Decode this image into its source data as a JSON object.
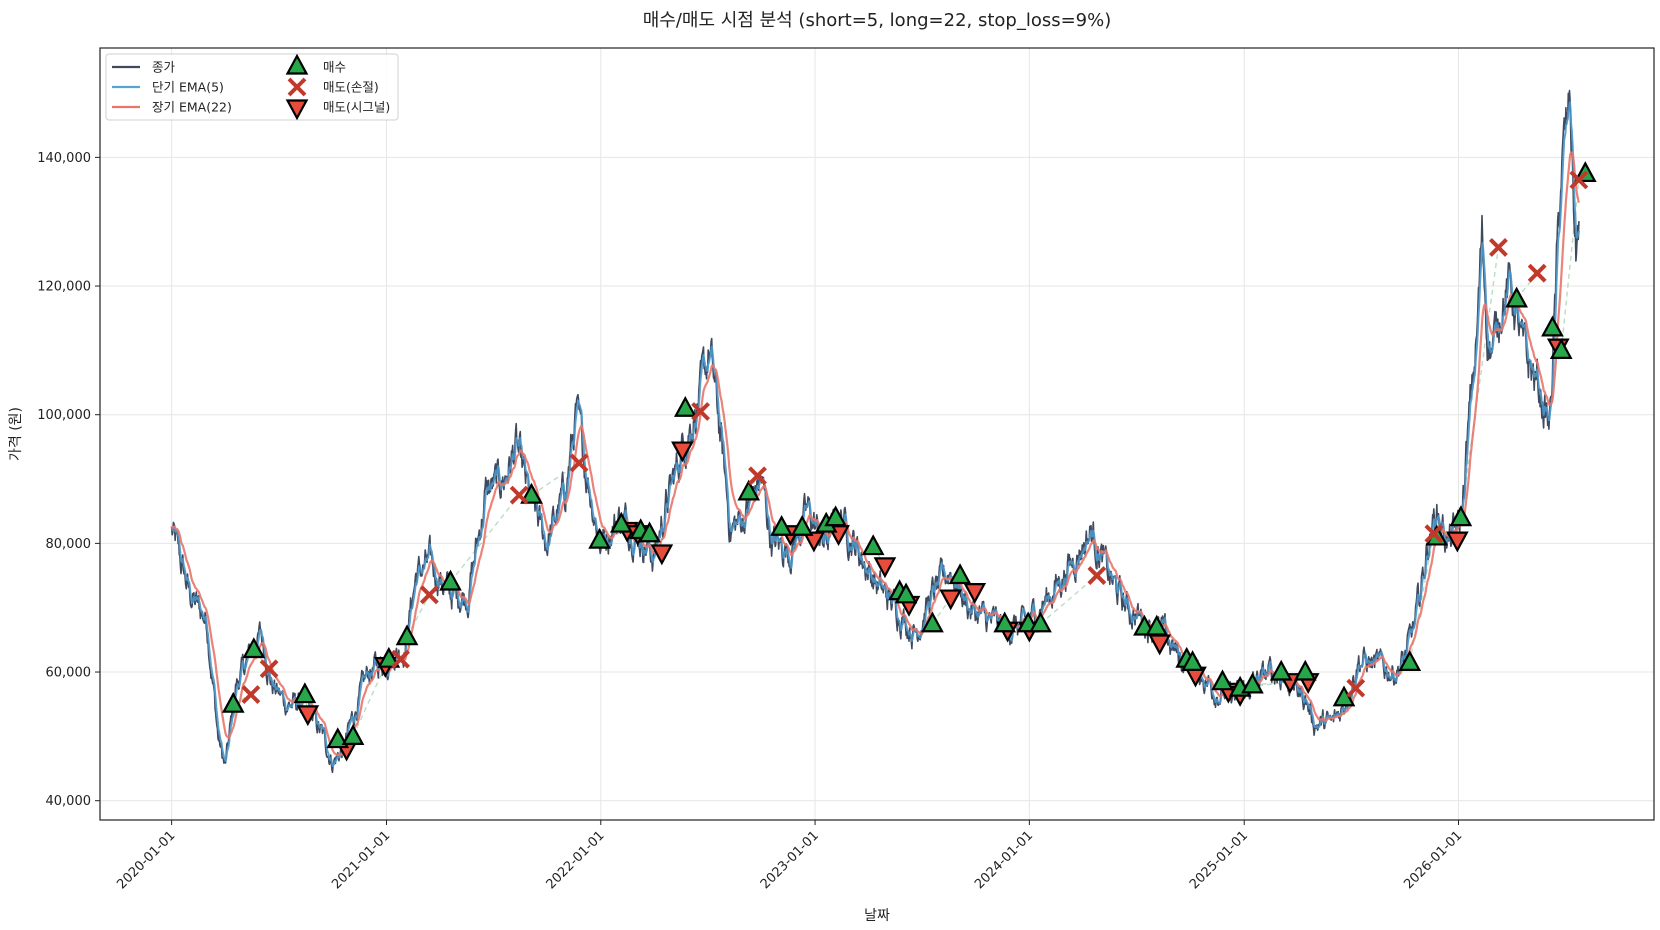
{
  "chart_data": {
    "type": "line",
    "title": "매수/매도 시점 분석 (short=5, long=22, stop_loss=9%)",
    "xlabel": "날짜",
    "ylabel": "가격 (원)",
    "xlim": [
      "2019-09-01",
      "2026-11-30"
    ],
    "ylim": [
      37000,
      157000
    ],
    "grid": true,
    "legend_position": "upper-left",
    "x_ticks": [
      "2020-01-01",
      "2021-01-01",
      "2022-01-01",
      "2023-01-01",
      "2024-01-01",
      "2025-01-01",
      "2026-01-01"
    ],
    "y_ticks": [
      40000,
      60000,
      80000,
      100000,
      120000,
      140000
    ],
    "y_tick_labels": [
      "40,000",
      "60,000",
      "80,000",
      "100,000",
      "120,000",
      "140,000"
    ],
    "price_anchors": [
      [
        "2020-01-01",
        82000
      ],
      [
        "2020-02-01",
        72000
      ],
      [
        "2020-03-01",
        68000
      ],
      [
        "2020-03-20",
        50000
      ],
      [
        "2020-04-01",
        45000
      ],
      [
        "2020-04-20",
        58000
      ],
      [
        "2020-05-10",
        62000
      ],
      [
        "2020-06-01",
        66000
      ],
      [
        "2020-06-20",
        58000
      ],
      [
        "2020-07-15",
        55000
      ],
      [
        "2020-08-15",
        55000
      ],
      [
        "2020-09-15",
        50000
      ],
      [
        "2020-10-01",
        46000
      ],
      [
        "2020-10-20",
        48000
      ],
      [
        "2020-11-01",
        52000
      ],
      [
        "2020-12-01",
        60000
      ],
      [
        "2021-01-01",
        62000
      ],
      [
        "2021-02-01",
        64000
      ],
      [
        "2021-02-20",
        75000
      ],
      [
        "2021-03-15",
        77000
      ],
      [
        "2021-04-20",
        72000
      ],
      [
        "2021-05-20",
        72000
      ],
      [
        "2021-06-20",
        88000
      ],
      [
        "2021-07-20",
        90000
      ],
      [
        "2021-08-10",
        95000
      ],
      [
        "2021-09-01",
        87000
      ],
      [
        "2021-10-01",
        80000
      ],
      [
        "2021-11-01",
        88000
      ],
      [
        "2021-11-20",
        100000
      ],
      [
        "2021-12-10",
        90000
      ],
      [
        "2022-01-01",
        80000
      ],
      [
        "2022-02-01",
        84000
      ],
      [
        "2022-03-01",
        82000
      ],
      [
        "2022-04-01",
        78000
      ],
      [
        "2022-04-20",
        85000
      ],
      [
        "2022-05-20",
        95000
      ],
      [
        "2022-06-20",
        103000
      ],
      [
        "2022-07-05",
        110000
      ],
      [
        "2022-07-20",
        100000
      ],
      [
        "2022-08-10",
        82000
      ],
      [
        "2022-09-01",
        84000
      ],
      [
        "2022-10-01",
        90000
      ],
      [
        "2022-10-20",
        80000
      ],
      [
        "2022-11-20",
        79000
      ],
      [
        "2022-12-20",
        85000
      ],
      [
        "2023-01-15",
        80000
      ],
      [
        "2023-02-15",
        84000
      ],
      [
        "2023-03-20",
        78000
      ],
      [
        "2023-04-20",
        73000
      ],
      [
        "2023-05-20",
        70000
      ],
      [
        "2023-06-20",
        66000
      ],
      [
        "2023-07-20",
        72000
      ],
      [
        "2023-08-20",
        76000
      ],
      [
        "2023-09-20",
        70000
      ],
      [
        "2023-10-20",
        68000
      ],
      [
        "2023-11-20",
        67000
      ],
      [
        "2023-12-20",
        67000
      ],
      [
        "2024-01-20",
        70000
      ],
      [
        "2024-02-20",
        74000
      ],
      [
        "2024-03-20",
        78000
      ],
      [
        "2024-04-15",
        82000
      ],
      [
        "2024-05-15",
        75000
      ],
      [
        "2024-06-15",
        70000
      ],
      [
        "2024-07-15",
        68000
      ],
      [
        "2024-08-15",
        66000
      ],
      [
        "2024-09-15",
        62000
      ],
      [
        "2024-10-15",
        60000
      ],
      [
        "2024-11-15",
        57000
      ],
      [
        "2024-12-15",
        56000
      ],
      [
        "2025-01-15",
        58000
      ],
      [
        "2025-02-15",
        60000
      ],
      [
        "2025-03-15",
        59000
      ],
      [
        "2025-04-15",
        56000
      ],
      [
        "2025-05-01",
        52000
      ],
      [
        "2025-06-01",
        52000
      ],
      [
        "2025-06-20",
        55000
      ],
      [
        "2025-07-15",
        62000
      ],
      [
        "2025-08-15",
        61000
      ],
      [
        "2025-09-15",
        60000
      ],
      [
        "2025-10-01",
        62000
      ],
      [
        "2025-10-20",
        68000
      ],
      [
        "2025-11-10",
        80000
      ],
      [
        "2025-11-25",
        85000
      ],
      [
        "2025-12-15",
        80000
      ],
      [
        "2026-01-05",
        83000
      ],
      [
        "2026-01-20",
        100000
      ],
      [
        "2026-02-01",
        112000
      ],
      [
        "2026-02-10",
        128000
      ],
      [
        "2026-02-20",
        112000
      ],
      [
        "2026-03-01",
        110000
      ],
      [
        "2026-03-15",
        118000
      ],
      [
        "2026-04-01",
        120000
      ],
      [
        "2026-04-20",
        110000
      ],
      [
        "2026-05-15",
        105000
      ],
      [
        "2026-06-05",
        98000
      ],
      [
        "2026-06-25",
        138000
      ],
      [
        "2026-07-10",
        148000
      ],
      [
        "2026-07-20",
        125000
      ],
      [
        "2026-07-25",
        130000
      ]
    ],
    "price_noise": 3500,
    "trades": {
      "buy": [
        [
          "2020-04-15",
          55000
        ],
        [
          "2020-05-20",
          63500
        ],
        [
          "2020-08-15",
          56500
        ],
        [
          "2020-10-10",
          49500
        ],
        [
          "2020-11-05",
          50000
        ],
        [
          "2021-01-05",
          62000
        ],
        [
          "2021-02-05",
          65500
        ],
        [
          "2021-04-20",
          74000
        ],
        [
          "2021-09-05",
          87500
        ],
        [
          "2021-12-30",
          80500
        ],
        [
          "2022-02-05",
          83000
        ],
        [
          "2022-03-10",
          82000
        ],
        [
          "2022-03-25",
          81500
        ],
        [
          "2022-05-25",
          101000
        ],
        [
          "2022-09-10",
          88000
        ],
        [
          "2022-11-05",
          82500
        ],
        [
          "2022-12-10",
          82500
        ],
        [
          "2023-01-20",
          83000
        ],
        [
          "2023-02-05",
          84000
        ],
        [
          "2023-04-10",
          79500
        ],
        [
          "2023-05-25",
          72500
        ],
        [
          "2023-06-05",
          72000
        ],
        [
          "2023-07-20",
          67500
        ],
        [
          "2023-09-05",
          75000
        ],
        [
          "2023-11-20",
          67500
        ],
        [
          "2023-12-30",
          67500
        ],
        [
          "2024-01-20",
          67500
        ],
        [
          "2024-07-15",
          67000
        ],
        [
          "2024-08-05",
          67000
        ],
        [
          "2024-09-25",
          62000
        ],
        [
          "2024-10-05",
          61500
        ],
        [
          "2024-11-25",
          58500
        ],
        [
          "2024-12-25",
          57500
        ],
        [
          "2025-01-15",
          58000
        ],
        [
          "2025-03-05",
          60000
        ],
        [
          "2025-04-15",
          60000
        ],
        [
          "2025-06-20",
          56000
        ],
        [
          "2025-10-10",
          61500
        ],
        [
          "2025-11-25",
          81000
        ],
        [
          "2026-01-05",
          84000
        ],
        [
          "2026-04-10",
          118000
        ],
        [
          "2026-06-10",
          113500
        ],
        [
          "2026-06-25",
          110000
        ],
        [
          "2026-08-05",
          137500
        ]
      ],
      "stop_loss": [
        [
          "2020-05-15",
          56500
        ],
        [
          "2020-06-15",
          60500
        ],
        [
          "2021-01-25",
          62000
        ],
        [
          "2021-03-15",
          72000
        ],
        [
          "2021-08-15",
          87500
        ],
        [
          "2021-11-25",
          92500
        ],
        [
          "2022-06-20",
          100500
        ],
        [
          "2022-09-25",
          90500
        ],
        [
          "2024-04-25",
          75000
        ],
        [
          "2025-07-10",
          57500
        ],
        [
          "2025-11-20",
          81500
        ],
        [
          "2026-03-10",
          126000
        ],
        [
          "2026-05-15",
          122000
        ],
        [
          "2026-07-25",
          136500
        ]
      ],
      "sell_signal": [
        [
          "2020-08-20",
          53500
        ],
        [
          "2020-10-25",
          48000
        ],
        [
          "2020-12-30",
          61000
        ],
        [
          "2022-02-15",
          82000
        ],
        [
          "2022-03-05",
          81500
        ],
        [
          "2022-04-15",
          78500
        ],
        [
          "2022-05-20",
          94500
        ],
        [
          "2022-11-20",
          81500
        ],
        [
          "2022-12-30",
          80500
        ],
        [
          "2023-02-10",
          81500
        ],
        [
          "2023-04-30",
          76500
        ],
        [
          "2023-06-10",
          70500
        ],
        [
          "2023-08-20",
          71500
        ],
        [
          "2023-09-30",
          72500
        ],
        [
          "2023-11-25",
          66500
        ],
        [
          "2024-01-01",
          66500
        ],
        [
          "2024-08-10",
          64500
        ],
        [
          "2024-10-10",
          59500
        ],
        [
          "2024-12-05",
          57000
        ],
        [
          "2024-12-25",
          56500
        ],
        [
          "2025-03-20",
          58500
        ],
        [
          "2025-04-20",
          58500
        ],
        [
          "2025-12-30",
          80500
        ],
        [
          "2026-06-20",
          110500
        ]
      ]
    },
    "legend": [
      {
        "label": "종가",
        "kind": "line",
        "color": "#3f4a5e"
      },
      {
        "label": "단기 EMA(5)",
        "kind": "line",
        "color": "#5aa2cf"
      },
      {
        "label": "장기 EMA(22)",
        "kind": "line",
        "color": "#e8756a"
      },
      {
        "label": "매수",
        "kind": "buy"
      },
      {
        "label": "매도(손절)",
        "kind": "stop_loss"
      },
      {
        "label": "매도(시그널)",
        "kind": "sell_signal"
      }
    ],
    "colors": {
      "close": "#3f4a5e",
      "ema_short": "#4a96c9",
      "ema_long": "#e8756a",
      "buy": "#27a64a",
      "stop_loss": "#c0392b",
      "sell_signal": "#e74c3c",
      "trade_link": "#a8d5b5"
    }
  }
}
